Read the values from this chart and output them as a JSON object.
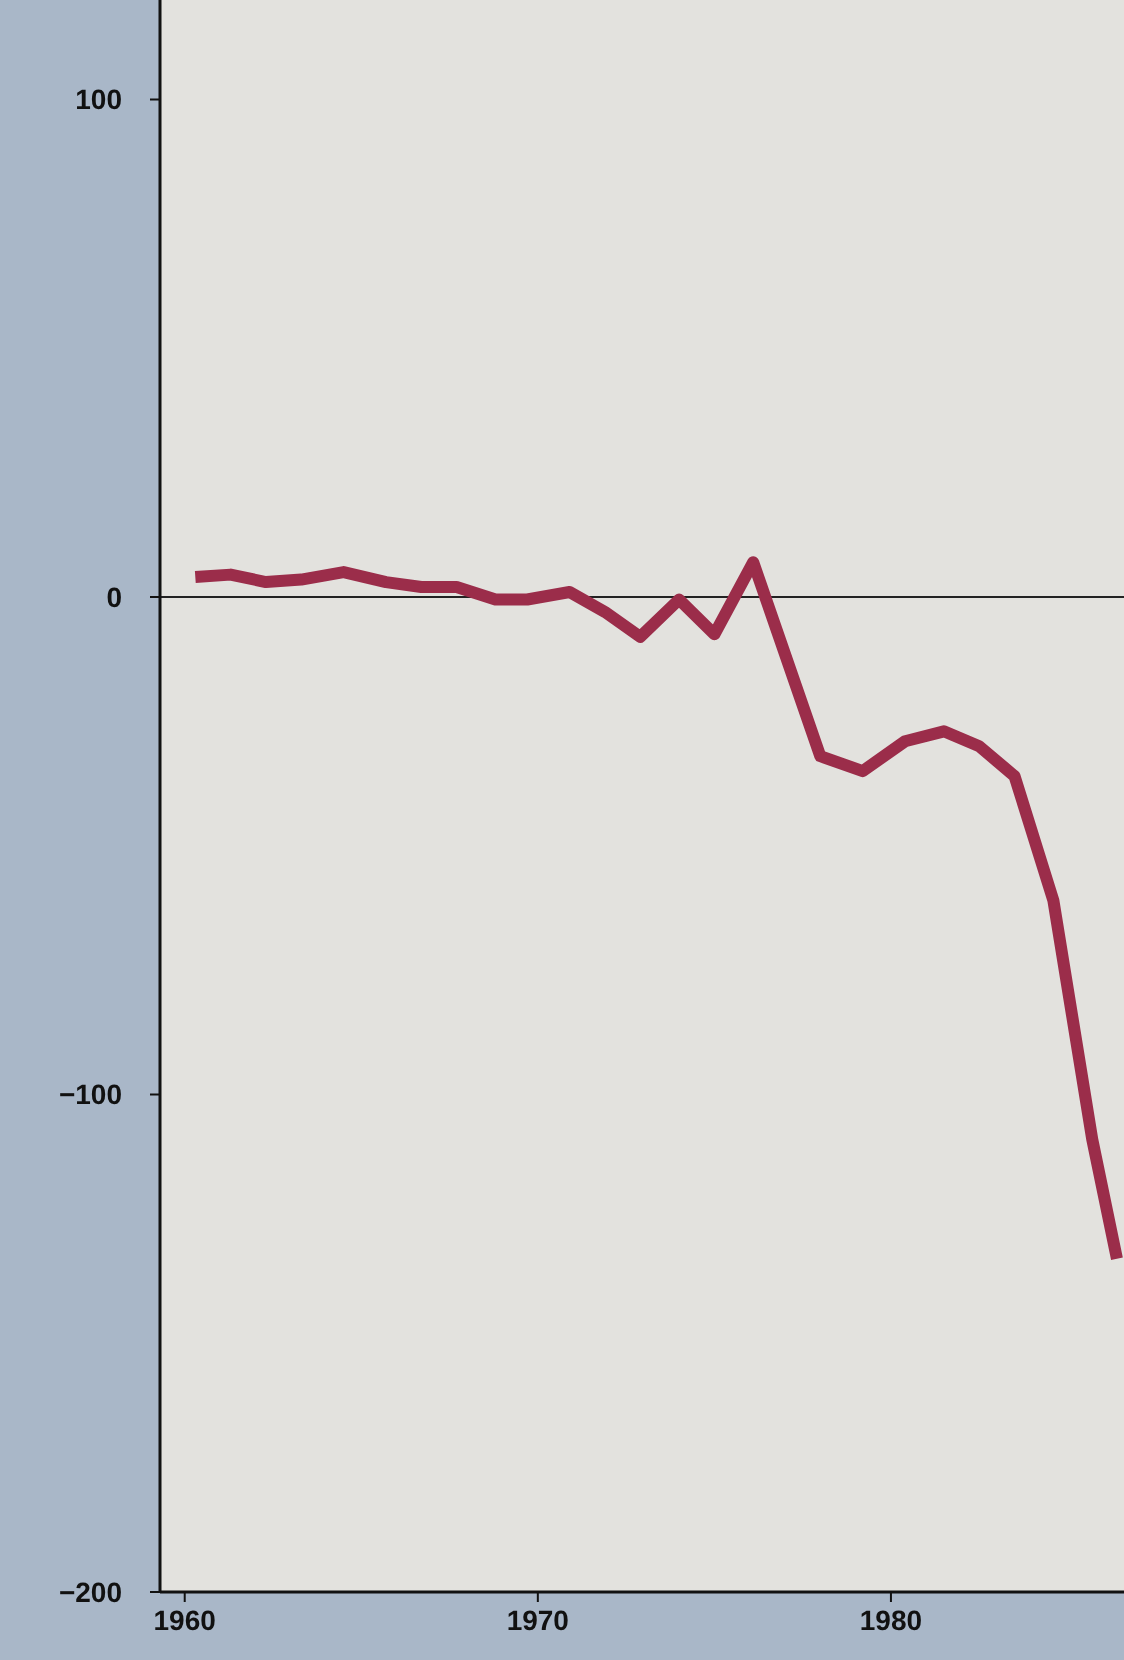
{
  "chart_data": {
    "type": "line",
    "x": [
      1960.3,
      1961.3,
      1962.3,
      1963.3,
      1964.5,
      1965.7,
      1966.7,
      1967.7,
      1968.8,
      1969.7,
      1970.9,
      1971.9,
      1972.9,
      1974,
      1975,
      1976.1,
      1978,
      1979.2,
      1980.4,
      1981.5,
      1982.5,
      1983.5,
      1984.6,
      1985.7,
      1986.4
    ],
    "series": [
      {
        "color": "#9b2d4a",
        "values": [
          4,
          4.5,
          3,
          3.5,
          5,
          3,
          2,
          2,
          -0.5,
          -0.5,
          1,
          -3,
          -8,
          -0.5,
          -7.5,
          7,
          -32,
          -35,
          -29,
          -27,
          -30,
          -36,
          -61,
          -109,
          -133
        ]
      }
    ],
    "xlim": [
      1959.3,
      1986.6
    ],
    "xticks": [
      1960,
      1970,
      1980
    ],
    "ylim": [
      -200,
      120
    ],
    "yticks": [
      -200,
      -100,
      0,
      100
    ],
    "ref_lines": [
      {
        "axis": "y",
        "value": 0,
        "color": "#222222"
      }
    ],
    "marker": "none",
    "line_style": "solid",
    "grid": false,
    "legend": false
  }
}
